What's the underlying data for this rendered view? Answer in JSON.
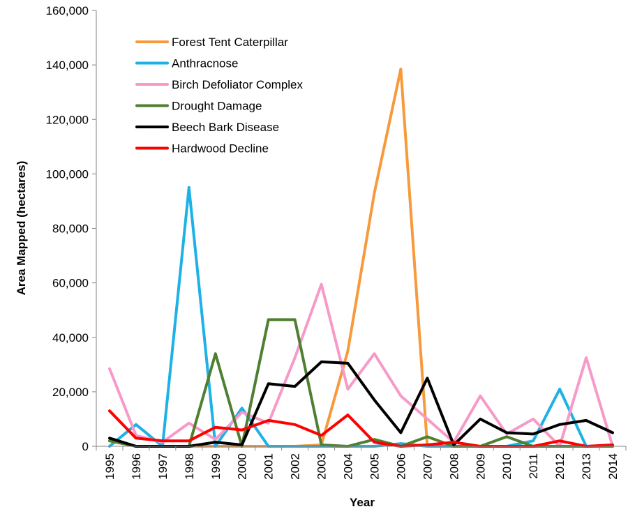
{
  "chart_data": {
    "type": "line",
    "xlabel": "Year",
    "ylabel": "Area Mapped (hectares)",
    "ylim": [
      0,
      160000
    ],
    "yticks": [
      0,
      20000,
      40000,
      60000,
      80000,
      100000,
      120000,
      140000,
      160000
    ],
    "ytick_labels": [
      "0",
      "20,000",
      "40,000",
      "60,000",
      "80,000",
      "100,000",
      "120,000",
      "140,000",
      "160,000"
    ],
    "categories": [
      "1995",
      "1996",
      "1997",
      "1998",
      "1999",
      "2000",
      "2001",
      "2002",
      "2003",
      "2004",
      "2005",
      "2006",
      "2007",
      "2008",
      "2009",
      "2010",
      "2011",
      "2012",
      "2013",
      "2014"
    ],
    "grid": false,
    "legend_position": "top-left",
    "series": [
      {
        "name": "Forest Tent Caterpillar",
        "color": "#F79A3B",
        "values": [
          2000,
          0,
          0,
          0,
          0,
          0,
          0,
          0,
          500,
          35000,
          93000,
          138500,
          0,
          0,
          0,
          0,
          0,
          0,
          0,
          0
        ]
      },
      {
        "name": "Anthracnose",
        "color": "#1EB1E6",
        "values": [
          0,
          8000,
          0,
          95000,
          0,
          14000,
          0,
          0,
          0,
          0,
          0,
          1000,
          0,
          0,
          0,
          0,
          2000,
          21000,
          0,
          0
        ]
      },
      {
        "name": "Birch Defoliator Complex",
        "color": "#F79AC8",
        "values": [
          28500,
          4000,
          1500,
          8500,
          2500,
          12500,
          8500,
          32500,
          59500,
          21000,
          34000,
          18500,
          10000,
          1500,
          18500,
          4500,
          10000,
          0,
          32500,
          0
        ]
      },
      {
        "name": "Drought Damage",
        "color": "#4F7F31",
        "values": [
          2000,
          0,
          0,
          0,
          34000,
          0,
          46500,
          46500,
          500,
          0,
          2500,
          0,
          3500,
          0,
          0,
          3500,
          0,
          0,
          0,
          0
        ]
      },
      {
        "name": "Beech Bark Disease",
        "color": "#000000",
        "values": [
          3000,
          0,
          0,
          0,
          1500,
          500,
          23000,
          22000,
          31000,
          30500,
          17000,
          5000,
          25000,
          500,
          10000,
          5000,
          4500,
          8000,
          9500,
          5000
        ]
      },
      {
        "name": "Hardwood Decline",
        "color": "#FF0000",
        "values": [
          13000,
          3000,
          2000,
          2000,
          7000,
          6000,
          9500,
          8000,
          4000,
          11500,
          1500,
          0,
          500,
          1500,
          0,
          0,
          0,
          2000,
          0,
          500
        ]
      }
    ]
  }
}
